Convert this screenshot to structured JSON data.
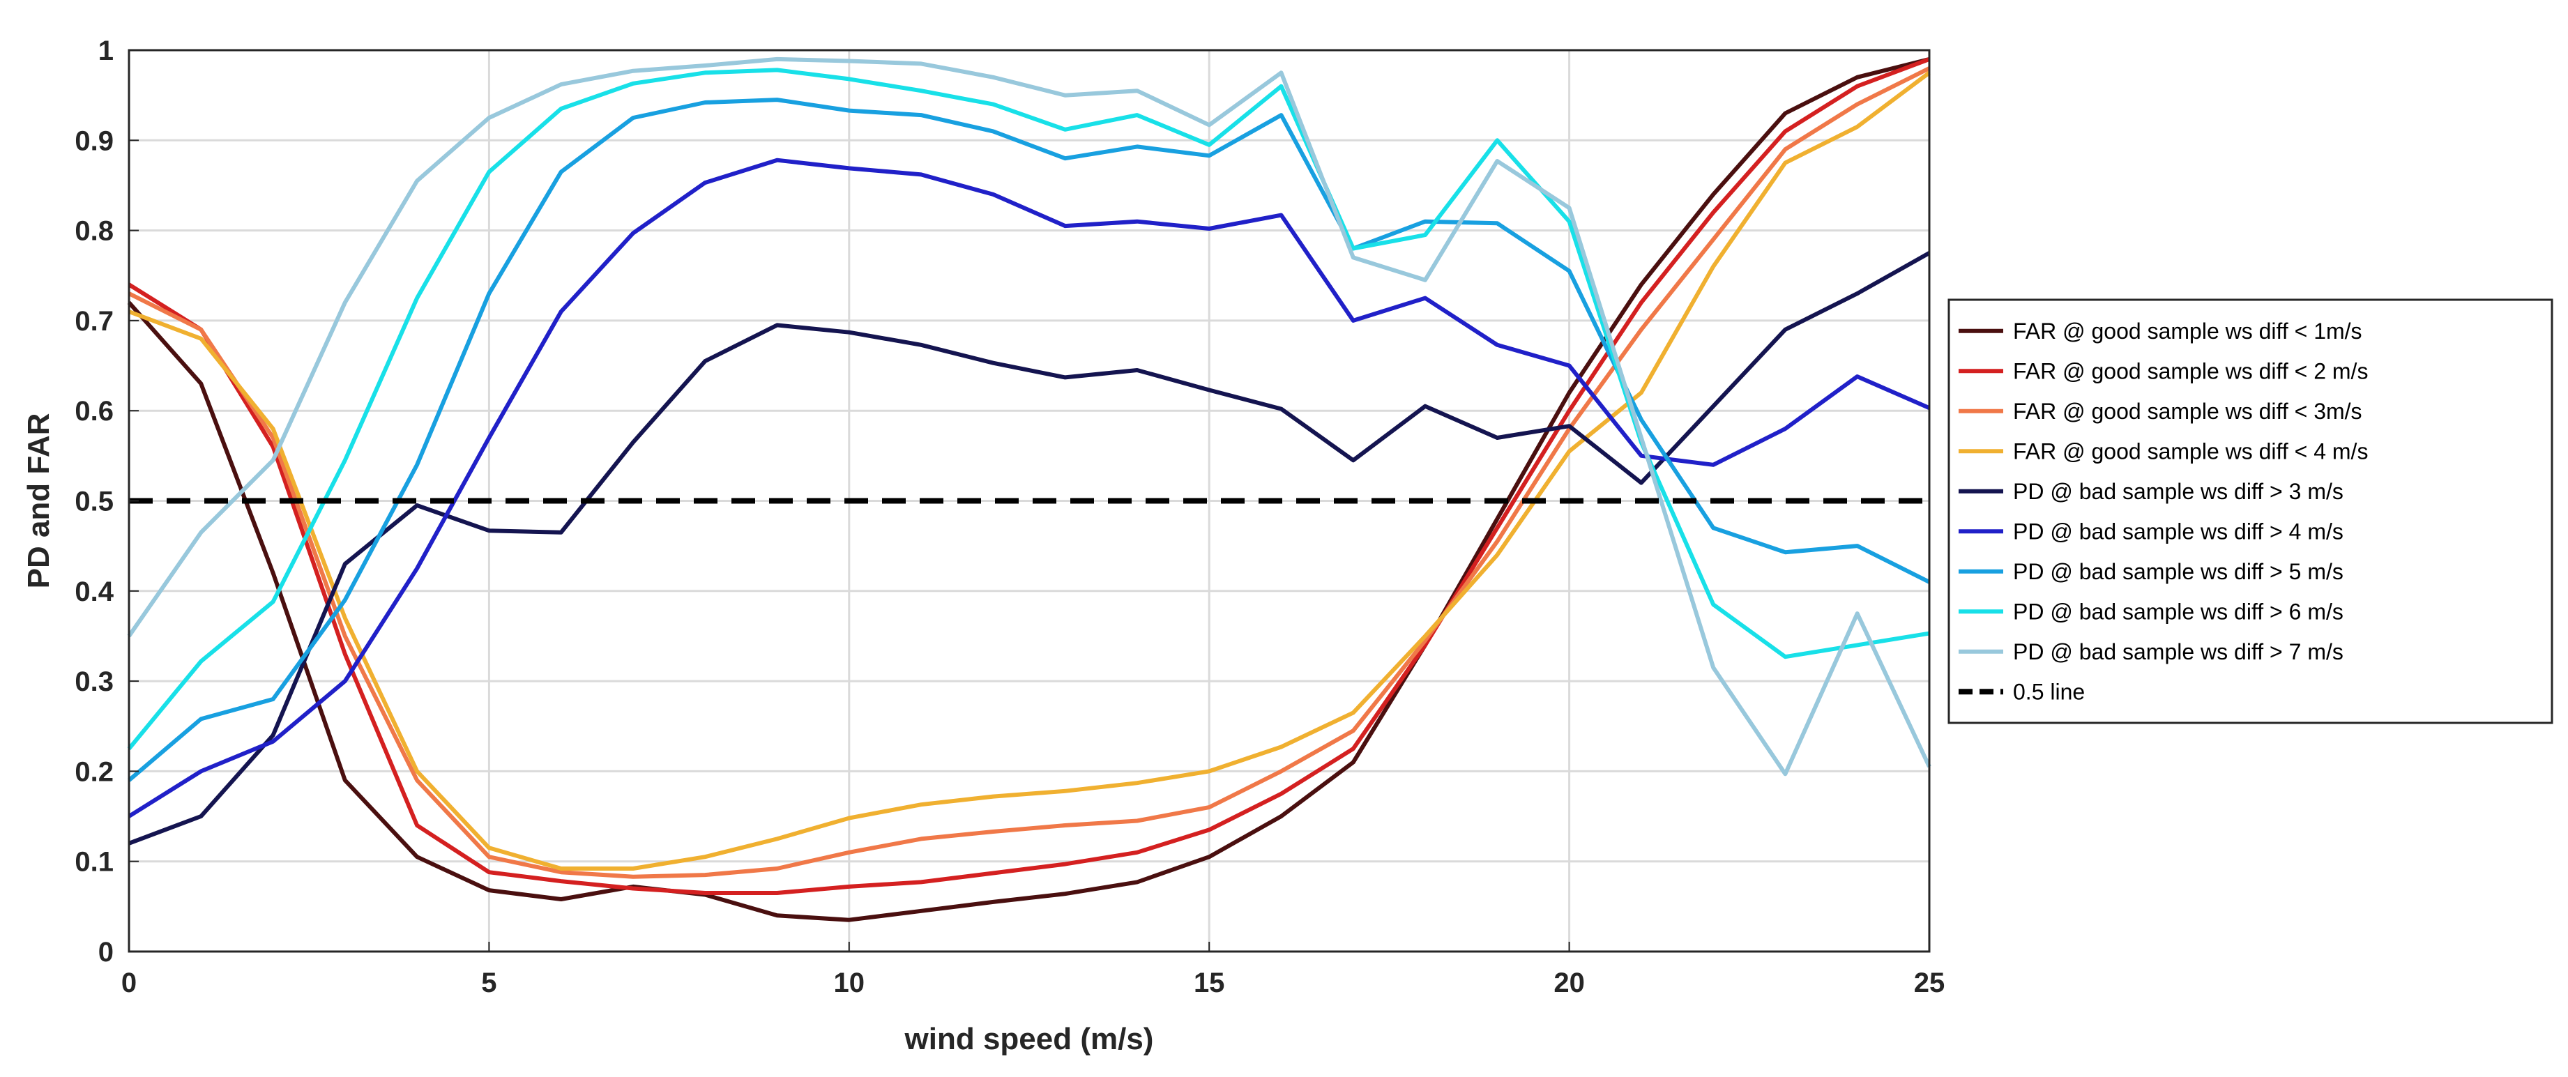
{
  "chart_data": {
    "type": "line",
    "title": "",
    "xlabel": "wind speed (m/s)",
    "ylabel": "PD and FAR",
    "xlim": [
      0,
      25
    ],
    "ylim": [
      0,
      1
    ],
    "grid": true,
    "legend_position": "outside-right",
    "x_ticks": [
      {
        "value": 0,
        "label": "0"
      },
      {
        "value": 5,
        "label": "5"
      },
      {
        "value": 10,
        "label": "10"
      },
      {
        "value": 15,
        "label": "15"
      },
      {
        "value": 20,
        "label": "20"
      },
      {
        "value": 25,
        "label": "25"
      }
    ],
    "y_ticks": [
      {
        "value": 0,
        "label": "0"
      },
      {
        "value": 0.1,
        "label": "0.1"
      },
      {
        "value": 0.2,
        "label": "0.2"
      },
      {
        "value": 0.3,
        "label": "0.3"
      },
      {
        "value": 0.4,
        "label": "0.4"
      },
      {
        "value": 0.5,
        "label": "0.5"
      },
      {
        "value": 0.6,
        "label": "0.6"
      },
      {
        "value": 0.7,
        "label": "0.7"
      },
      {
        "value": 0.8,
        "label": "0.8"
      },
      {
        "value": 0.9,
        "label": "0.9"
      },
      {
        "value": 1,
        "label": "1"
      }
    ],
    "x": [
      0,
      1,
      2,
      3,
      4,
      5,
      6,
      7,
      8,
      9,
      10,
      11,
      12,
      13,
      14,
      15,
      16,
      17,
      18,
      19,
      20,
      21,
      22,
      23,
      24,
      25
    ],
    "series": [
      {
        "name": "FAR @ good sample ws diff < 1m/s",
        "color": "#4a0f0f",
        "dashed": false,
        "values": [
          0.72,
          0.63,
          0.42,
          0.19,
          0.105,
          0.068,
          0.058,
          0.072,
          0.063,
          0.04,
          0.035,
          0.045,
          0.055,
          0.064,
          0.077,
          0.105,
          0.15,
          0.21,
          0.34,
          0.48,
          0.62,
          0.74,
          0.84,
          0.93,
          0.97,
          0.99
        ]
      },
      {
        "name": "FAR @ good sample ws diff < 2 m/s",
        "color": "#d42020",
        "dashed": false,
        "values": [
          0.74,
          0.69,
          0.56,
          0.33,
          0.14,
          0.088,
          0.078,
          0.07,
          0.065,
          0.065,
          0.072,
          0.077,
          0.087,
          0.097,
          0.11,
          0.135,
          0.175,
          0.225,
          0.34,
          0.47,
          0.6,
          0.72,
          0.82,
          0.91,
          0.96,
          0.99
        ]
      },
      {
        "name": "FAR @ good sample ws diff < 3m/s",
        "color": "#f07848",
        "dashed": false,
        "values": [
          0.73,
          0.69,
          0.57,
          0.35,
          0.19,
          0.105,
          0.088,
          0.083,
          0.085,
          0.092,
          0.11,
          0.125,
          0.133,
          0.14,
          0.145,
          0.16,
          0.2,
          0.245,
          0.345,
          0.455,
          0.58,
          0.69,
          0.79,
          0.89,
          0.94,
          0.98
        ]
      },
      {
        "name": "FAR @ good sample ws diff < 4 m/s",
        "color": "#f0b030",
        "dashed": false,
        "values": [
          0.71,
          0.68,
          0.58,
          0.37,
          0.2,
          0.115,
          0.092,
          0.092,
          0.105,
          0.125,
          0.148,
          0.163,
          0.172,
          0.178,
          0.187,
          0.2,
          0.227,
          0.265,
          0.35,
          0.44,
          0.555,
          0.62,
          0.76,
          0.875,
          0.915,
          0.975
        ]
      },
      {
        "name": "PD @ bad sample ws diff > 3 m/s",
        "color": "#141450",
        "dashed": false,
        "values": [
          0.12,
          0.15,
          0.24,
          0.43,
          0.495,
          0.467,
          0.465,
          0.565,
          0.655,
          0.695,
          0.687,
          0.673,
          0.653,
          0.637,
          0.645,
          0.623,
          0.602,
          0.545,
          0.605,
          0.57,
          0.583,
          0.52,
          0.605,
          0.69,
          0.73,
          0.775
        ]
      },
      {
        "name": "PD @ bad sample ws diff > 4 m/s",
        "color": "#2020c8",
        "dashed": false,
        "values": [
          0.15,
          0.2,
          0.233,
          0.3,
          0.425,
          0.57,
          0.71,
          0.797,
          0.853,
          0.878,
          0.869,
          0.862,
          0.84,
          0.805,
          0.81,
          0.802,
          0.817,
          0.7,
          0.725,
          0.673,
          0.65,
          0.55,
          0.54,
          0.58,
          0.638,
          0.603
        ]
      },
      {
        "name": "PD @ bad sample ws diff > 5 m/s",
        "color": "#18a0e0",
        "dashed": false,
        "values": [
          0.19,
          0.258,
          0.28,
          0.39,
          0.54,
          0.73,
          0.865,
          0.925,
          0.942,
          0.945,
          0.933,
          0.928,
          0.91,
          0.88,
          0.893,
          0.883,
          0.928,
          0.78,
          0.81,
          0.808,
          0.755,
          0.59,
          0.47,
          0.443,
          0.45,
          0.41
        ]
      },
      {
        "name": "PD @ bad sample ws diff > 6 m/s",
        "color": "#18e0e8",
        "dashed": false,
        "values": [
          0.225,
          0.322,
          0.388,
          0.545,
          0.725,
          0.865,
          0.935,
          0.963,
          0.975,
          0.978,
          0.968,
          0.955,
          0.94,
          0.912,
          0.928,
          0.895,
          0.96,
          0.78,
          0.795,
          0.9,
          0.81,
          0.565,
          0.385,
          0.327,
          0.34,
          0.353
        ]
      },
      {
        "name": "PD @ bad sample ws diff > 7 m/s",
        "color": "#98c8dc",
        "dashed": false,
        "values": [
          0.35,
          0.465,
          0.545,
          0.72,
          0.855,
          0.925,
          0.962,
          0.977,
          0.983,
          0.99,
          0.988,
          0.985,
          0.97,
          0.95,
          0.955,
          0.917,
          0.975,
          0.77,
          0.745,
          0.877,
          0.825,
          0.57,
          0.315,
          0.197,
          0.375,
          0.205
        ]
      },
      {
        "name": "0.5 line",
        "color": "#000000",
        "dashed": true,
        "values": [
          0.5,
          0.5,
          0.5,
          0.5,
          0.5,
          0.5,
          0.5,
          0.5,
          0.5,
          0.5,
          0.5,
          0.5,
          0.5,
          0.5,
          0.5,
          0.5,
          0.5,
          0.5,
          0.5,
          0.5,
          0.5,
          0.5,
          0.5,
          0.5,
          0.5,
          0.5
        ]
      }
    ]
  }
}
